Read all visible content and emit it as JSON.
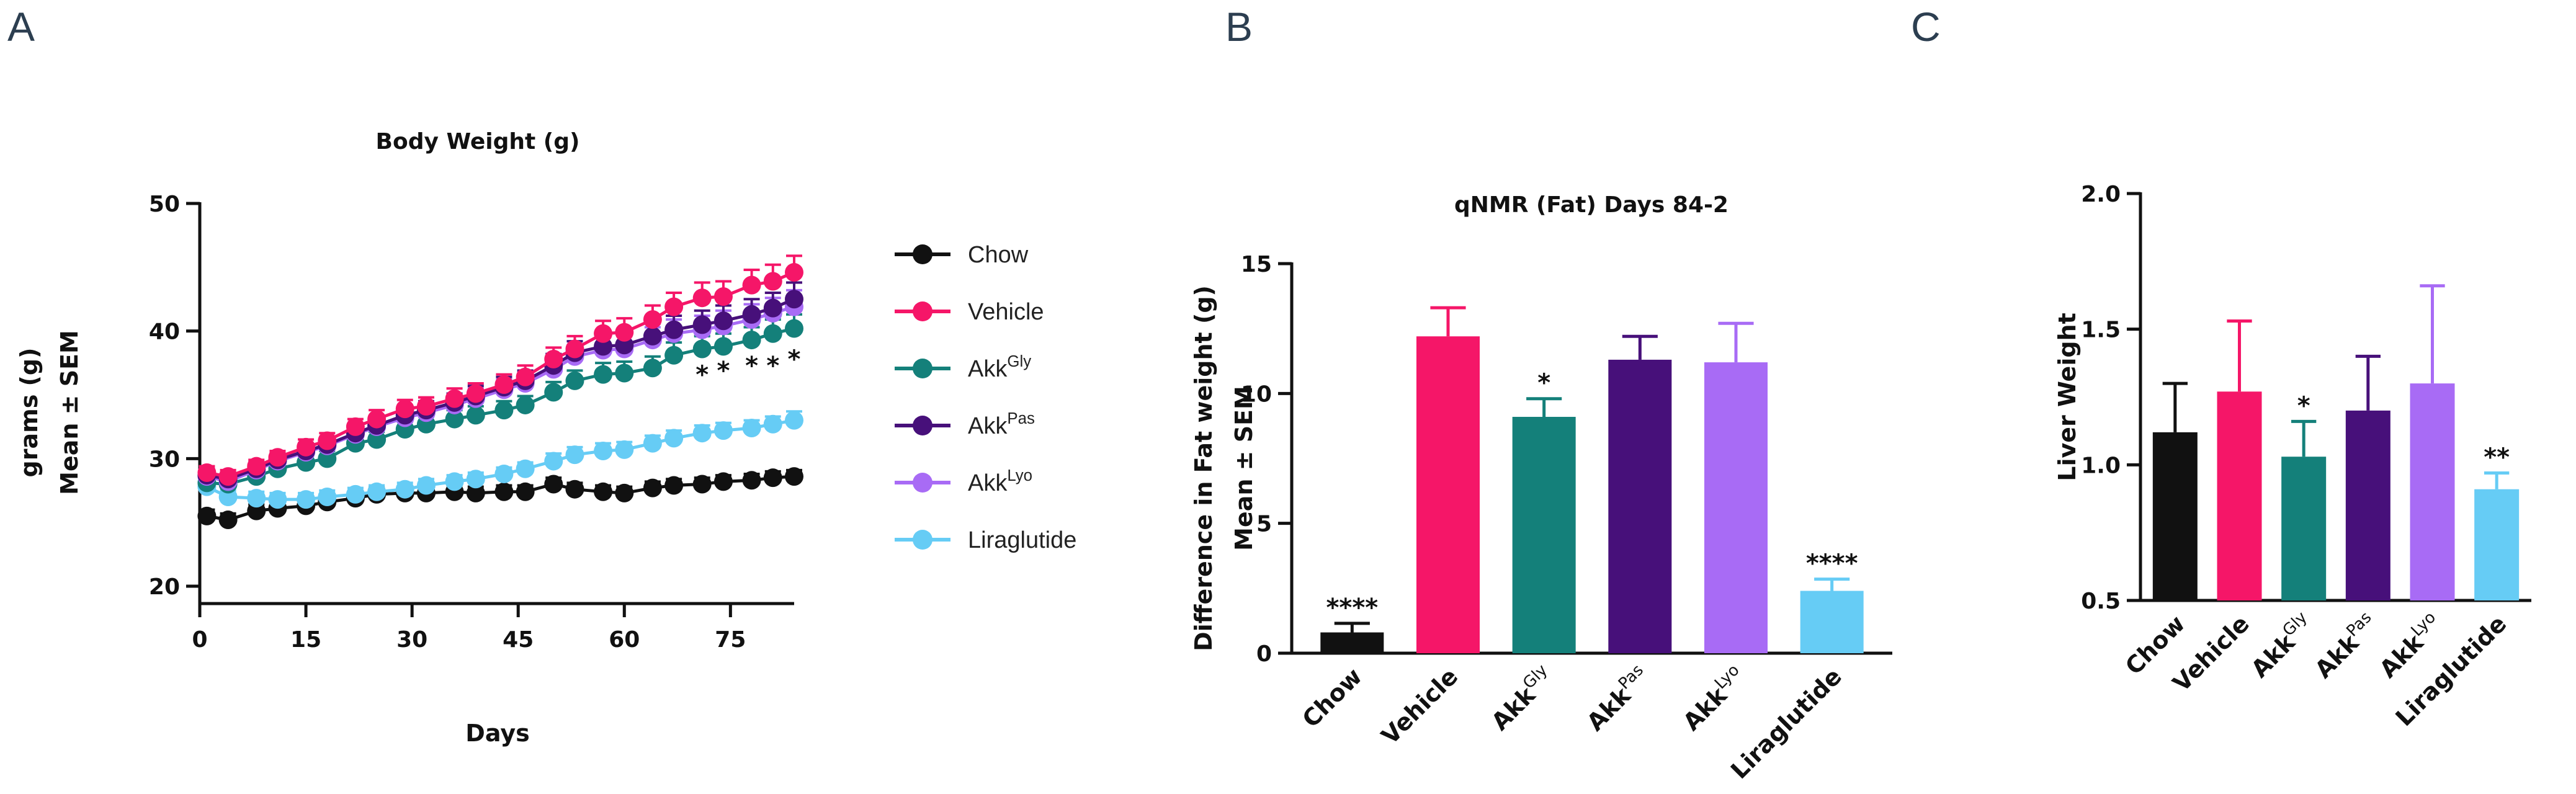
{
  "panels": {
    "a": "A",
    "b": "B",
    "c": "C"
  },
  "chart_data": [
    {
      "type": "line",
      "title": "Body Weight (g)",
      "xlabel": "Days",
      "ylabel_lines": [
        "grams (g)",
        "Mean ± SEM"
      ],
      "xlim": [
        0,
        84
      ],
      "ylim": [
        20,
        50
      ],
      "xticks": [
        0,
        15,
        30,
        45,
        60,
        75
      ],
      "yticks": [
        20,
        30,
        40,
        50
      ],
      "x": [
        1,
        4,
        8,
        11,
        15,
        18,
        22,
        25,
        29,
        32,
        36,
        39,
        43,
        46,
        50,
        53,
        57,
        60,
        64,
        67,
        71,
        74,
        78,
        81,
        84
      ],
      "series": [
        {
          "name": "Chow",
          "sup": "",
          "color": "#111111",
          "values": [
            25.5,
            25.2,
            25.9,
            26.1,
            26.3,
            26.6,
            26.9,
            27.2,
            27.3,
            27.3,
            27.4,
            27.3,
            27.4,
            27.4,
            28.0,
            27.6,
            27.4,
            27.3,
            27.7,
            27.9,
            28.0,
            28.2,
            28.3,
            28.5,
            28.6
          ],
          "err": [
            0.5,
            0.5,
            0.5,
            0.5,
            0.5,
            0.5,
            0.5,
            0.5,
            0.5,
            0.5,
            0.5,
            0.5,
            0.5,
            0.5,
            0.5,
            0.5,
            0.5,
            0.5,
            0.5,
            0.5,
            0.5,
            0.5,
            0.5,
            0.5,
            0.5
          ]
        },
        {
          "name": "Liraglutide",
          "sup": "",
          "color": "#66ccf5",
          "values": [
            27.8,
            27.0,
            26.9,
            26.8,
            26.8,
            27.0,
            27.2,
            27.4,
            27.6,
            27.9,
            28.2,
            28.4,
            28.8,
            29.2,
            29.8,
            30.3,
            30.6,
            30.7,
            31.2,
            31.6,
            32.0,
            32.2,
            32.4,
            32.7,
            33.0
          ],
          "err": [
            0.5,
            0.5,
            0.5,
            0.5,
            0.5,
            0.5,
            0.5,
            0.5,
            0.5,
            0.5,
            0.5,
            0.5,
            0.5,
            0.5,
            0.6,
            0.6,
            0.6,
            0.6,
            0.6,
            0.6,
            0.6,
            0.6,
            0.6,
            0.6,
            0.7
          ]
        },
        {
          "name": "Akk",
          "sup": "Gly",
          "color": "#14807a",
          "values": [
            28.1,
            28.0,
            28.6,
            29.2,
            29.7,
            30.0,
            31.2,
            31.5,
            32.3,
            32.7,
            33.1,
            33.4,
            33.8,
            34.2,
            35.2,
            36.1,
            36.6,
            36.7,
            37.1,
            38.1,
            38.6,
            38.8,
            39.3,
            39.8,
            40.2
          ],
          "err": [
            0.5,
            0.5,
            0.5,
            0.5,
            0.5,
            0.6,
            0.6,
            0.6,
            0.6,
            0.6,
            0.7,
            0.7,
            0.7,
            0.7,
            0.8,
            0.8,
            0.9,
            0.9,
            0.9,
            1.0,
            1.0,
            1.0,
            1.0,
            1.1,
            1.1
          ]
        },
        {
          "name": "Akk",
          "sup": "Lyo",
          "color": "#a86bf5",
          "values": [
            28.6,
            28.2,
            29.1,
            29.8,
            30.5,
            31.0,
            31.9,
            32.5,
            33.2,
            33.6,
            34.2,
            34.7,
            35.4,
            35.9,
            37.0,
            38.0,
            38.5,
            38.6,
            39.3,
            39.8,
            40.1,
            40.4,
            40.9,
            41.4,
            41.9
          ],
          "err": [
            0.5,
            0.5,
            0.5,
            0.5,
            0.6,
            0.6,
            0.6,
            0.6,
            0.7,
            0.7,
            0.7,
            0.8,
            0.8,
            0.8,
            0.9,
            0.9,
            1.0,
            1.0,
            1.0,
            1.1,
            1.1,
            1.2,
            1.2,
            1.2,
            1.3
          ]
        },
        {
          "name": "Akk",
          "sup": "Pas",
          "color": "#47107a",
          "values": [
            28.7,
            28.4,
            29.2,
            29.9,
            30.6,
            31.1,
            32.0,
            32.6,
            33.4,
            33.8,
            34.4,
            34.9,
            35.6,
            36.1,
            37.3,
            38.3,
            38.8,
            38.9,
            39.6,
            40.1,
            40.5,
            40.8,
            41.3,
            41.8,
            42.5
          ],
          "err": [
            0.5,
            0.5,
            0.5,
            0.5,
            0.6,
            0.6,
            0.6,
            0.6,
            0.7,
            0.7,
            0.7,
            0.8,
            0.8,
            0.8,
            0.9,
            0.9,
            1.0,
            1.0,
            1.0,
            1.1,
            1.1,
            1.2,
            1.2,
            1.2,
            1.3
          ]
        },
        {
          "name": "Vehicle",
          "sup": "",
          "color": "#f51668",
          "values": [
            28.9,
            28.6,
            29.4,
            30.1,
            30.9,
            31.4,
            32.5,
            33.1,
            33.9,
            34.1,
            34.7,
            35.1,
            35.8,
            36.4,
            37.8,
            38.6,
            39.8,
            39.9,
            40.9,
            41.9,
            42.6,
            42.7,
            43.6,
            43.9,
            44.6
          ],
          "err": [
            0.5,
            0.5,
            0.5,
            0.5,
            0.6,
            0.6,
            0.6,
            0.7,
            0.7,
            0.7,
            0.8,
            0.8,
            0.8,
            0.9,
            0.9,
            1.0,
            1.0,
            1.1,
            1.1,
            1.1,
            1.2,
            1.2,
            1.2,
            1.3,
            1.3
          ]
        }
      ],
      "legend_order": [
        0,
        5,
        2,
        4,
        3,
        1
      ],
      "legend_position": "right",
      "annotations": [
        {
          "x": 71,
          "y": 37.0,
          "text": "*"
        },
        {
          "x": 74,
          "y": 37.3,
          "text": "*"
        },
        {
          "x": 78,
          "y": 37.7,
          "text": "*"
        },
        {
          "x": 81,
          "y": 37.7,
          "text": "*"
        },
        {
          "x": 84,
          "y": 38.2,
          "text": "*"
        }
      ]
    },
    {
      "type": "bar",
      "title": "qNMR (Fat) Days 84-2",
      "ylabel_lines": [
        "Difference in Fat  weight (g)",
        "Mean ± SEM"
      ],
      "ylim": [
        0,
        15
      ],
      "yticks": [
        0,
        5,
        10,
        15
      ],
      "categories": [
        {
          "name": "Chow",
          "sup": ""
        },
        {
          "name": "Vehicle",
          "sup": ""
        },
        {
          "name": "Akk",
          "sup": "Gly"
        },
        {
          "name": "Akk",
          "sup": "Pas"
        },
        {
          "name": "Akk",
          "sup": "Lyo"
        },
        {
          "name": "Liraglutide",
          "sup": ""
        }
      ],
      "values": [
        0.8,
        12.2,
        9.1,
        11.3,
        11.2,
        2.4
      ],
      "err": [
        0.35,
        1.1,
        0.7,
        0.9,
        1.5,
        0.45
      ],
      "colors": [
        "#111111",
        "#f51668",
        "#14807a",
        "#47107a",
        "#a86bf5",
        "#66ccf5"
      ],
      "significance": [
        "****",
        "",
        "*",
        "",
        "",
        "****"
      ]
    },
    {
      "type": "bar",
      "title": "",
      "ylabel_lines": [
        "Liver Weight"
      ],
      "ylim": [
        0.5,
        2.0
      ],
      "yticks": [
        0.5,
        1.0,
        1.5,
        2.0
      ],
      "ytick_labels": [
        "0.5",
        "1.0",
        "1.5",
        "2.0"
      ],
      "categories": [
        {
          "name": "Chow",
          "sup": ""
        },
        {
          "name": "Vehicle",
          "sup": ""
        },
        {
          "name": "Akk",
          "sup": "Gly"
        },
        {
          "name": "Akk",
          "sup": "Pas"
        },
        {
          "name": "Akk",
          "sup": "Lyo"
        },
        {
          "name": "Liraglutide",
          "sup": ""
        }
      ],
      "values": [
        1.12,
        1.27,
        1.03,
        1.2,
        1.3,
        0.91
      ],
      "err": [
        0.18,
        0.26,
        0.13,
        0.2,
        0.36,
        0.06
      ],
      "colors": [
        "#111111",
        "#f51668",
        "#14807a",
        "#47107a",
        "#a86bf5",
        "#66ccf5"
      ],
      "significance": [
        "",
        "",
        "*",
        "",
        "",
        "**"
      ]
    }
  ]
}
